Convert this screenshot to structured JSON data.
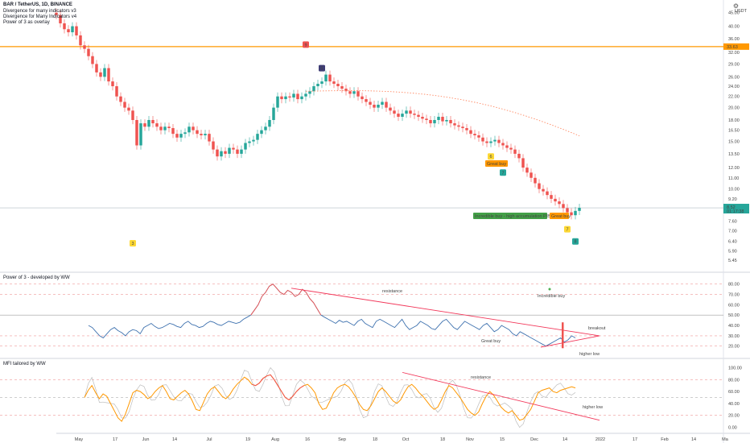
{
  "header": {
    "title": "BAR / TetherUS, 1D, BINANCE",
    "indicators": [
      "Divergence for many indicators v3",
      "Divergence for Many Indicators v4",
      "Power of 3 as overlay"
    ],
    "currency": "USDT"
  },
  "panels": {
    "power3_title": "Power of 3 - developed by WW",
    "mfi_title": "MFI tailored by WW"
  },
  "colors": {
    "up": "#26a69a",
    "down": "#ef5350",
    "orange": "#ff9800",
    "blue": "#2962ff",
    "navy": "#1565c0",
    "red_line": "#f2385a",
    "power_line": "#3f72af"
  },
  "icons": {
    "gear": "gear-icon"
  },
  "chart_data": [
    {
      "type": "candlestick",
      "name": "BAR / TetherUS, 1D, BINANCE",
      "x_ticks": [
        "May",
        "17",
        "Jun",
        "14",
        "Jul",
        "19",
        "Aug",
        "16",
        "Sep",
        "18",
        "Oct",
        "18",
        "Nov",
        "15",
        "Dec",
        "14",
        "2022",
        "17",
        "Feb",
        "14",
        "Ma"
      ],
      "y_ticks": [
        45.0,
        40.0,
        36.0,
        32.0,
        29.0,
        26.0,
        24.0,
        22.0,
        20.0,
        18.0,
        16.5,
        15.0,
        13.5,
        12.0,
        11.0,
        10.0,
        9.2,
        8.4,
        7.6,
        7.0,
        6.4,
        5.9,
        5.45
      ],
      "scale": "log",
      "ylim": [
        5.2,
        48
      ],
      "last_price": "8.52",
      "countdown": "01:17:38",
      "horizontal_level": {
        "value": "33.63"
      },
      "close": [
        44,
        41,
        39,
        38,
        40,
        37,
        34,
        33,
        31,
        29,
        27,
        26,
        28,
        25,
        24,
        22,
        21,
        20,
        19.5,
        18,
        14.5,
        17.5,
        17,
        18,
        17.5,
        17,
        16.5,
        17,
        16.8,
        16,
        15.5,
        16,
        16.2,
        17,
        16.5,
        16,
        15.8,
        16,
        15,
        14,
        13.2,
        13.8,
        13.5,
        14.2,
        14,
        13.5,
        14,
        14.8,
        15,
        15.2,
        16,
        16.5,
        17,
        18,
        20,
        22,
        21.5,
        22,
        21.8,
        22.5,
        21.5,
        22,
        22.5,
        23,
        24,
        24.5,
        25,
        26.5,
        25,
        24.5,
        24,
        23.5,
        23,
        22.5,
        23,
        22,
        21.5,
        21,
        20.5,
        20,
        20.5,
        21,
        20,
        19.5,
        19,
        18.5,
        19,
        19.5,
        19,
        18.8,
        18.5,
        18.2,
        18,
        17.5,
        18,
        18.5,
        17.8,
        18,
        17.5,
        17.2,
        17,
        16.8,
        16.5,
        16,
        15.8,
        15.5,
        15,
        14.8,
        15,
        15.2,
        14.8,
        14.5,
        14.2,
        14,
        13.5,
        13,
        12,
        11.5,
        11,
        10.5,
        10,
        9.8,
        9.5,
        9.2,
        9,
        8.8,
        8.5,
        8.2,
        8,
        8.3,
        8.52
      ],
      "annotations": [
        {
          "label": "Great buy"
        },
        {
          "label": "Incredible buy - high accumulation P/B"
        },
        {
          "label": "Great buy"
        }
      ],
      "markers": [
        {
          "text": "3"
        },
        {
          "text": "5"
        },
        {
          "text": "6"
        },
        {
          "text": "7"
        },
        {
          "text": "7"
        },
        {
          "text": "8"
        },
        {
          "text": "9"
        }
      ],
      "overlay": "Power of 3 as overlay"
    },
    {
      "type": "line",
      "name": "Power of 3 - developed by WW",
      "y_ticks": [
        80.0,
        70.0,
        60.0,
        50.0,
        40.0,
        30.0,
        20.0
      ],
      "ylim": [
        12,
        86
      ],
      "values": [
        40,
        38,
        34,
        30,
        28,
        32,
        36,
        38,
        35,
        33,
        30,
        34,
        36,
        35,
        32,
        38,
        40,
        42,
        39,
        37,
        38,
        40,
        42,
        41,
        39,
        38,
        42,
        44,
        41,
        40,
        38,
        39,
        42,
        44,
        43,
        41,
        40,
        42,
        44,
        43,
        42,
        43,
        46,
        48,
        50,
        55,
        60,
        68,
        72,
        78,
        80,
        76,
        72,
        70,
        74,
        72,
        68,
        70,
        75,
        72,
        66,
        62,
        56,
        50,
        48,
        46,
        44,
        42,
        45,
        43,
        44,
        42,
        40,
        44,
        46,
        42,
        40,
        38,
        44,
        46,
        44,
        42,
        40,
        38,
        42,
        46,
        40,
        36,
        38,
        40,
        44,
        42,
        40,
        37,
        36,
        40,
        44,
        46,
        42,
        38,
        36,
        40,
        44,
        42,
        40,
        38,
        36,
        40,
        42,
        38,
        34,
        36,
        40,
        38,
        36,
        32,
        30,
        34,
        32,
        30,
        28,
        26,
        24,
        22,
        20,
        22,
        24,
        26,
        28,
        24,
        26,
        30,
        28
      ],
      "annotations": [
        {
          "label": "resistance"
        },
        {
          "label": "Incredible buy"
        },
        {
          "label": "Great buy"
        },
        {
          "label": "breakout"
        },
        {
          "label": "higher low"
        }
      ],
      "reference_levels": [
        80,
        70,
        50,
        30,
        20
      ]
    },
    {
      "type": "line",
      "name": "MFI tailored by WW",
      "y_ticks": [
        100.0,
        80.0,
        60.0,
        40.0,
        20.0,
        0.0
      ],
      "ylim": [
        -6,
        106
      ],
      "values": [
        50,
        62,
        70,
        58,
        48,
        56,
        52,
        40,
        28,
        16,
        10,
        22,
        40,
        58,
        62,
        60,
        55,
        48,
        52,
        60,
        66,
        70,
        60,
        48,
        46,
        52,
        58,
        62,
        56,
        44,
        30,
        28,
        42,
        56,
        64,
        68,
        60,
        52,
        48,
        54,
        64,
        72,
        78,
        84,
        80,
        72,
        70,
        74,
        82,
        86,
        88,
        80,
        70,
        60,
        50,
        46,
        52,
        60,
        66,
        70,
        72,
        66,
        58,
        40,
        30,
        32,
        44,
        58,
        66,
        70,
        72,
        68,
        60,
        50,
        38,
        30,
        28,
        36,
        48,
        60,
        66,
        60,
        52,
        44,
        40,
        46,
        58,
        68,
        72,
        66,
        58,
        52,
        44,
        36,
        30,
        34,
        46,
        60,
        70,
        66,
        58,
        50,
        40,
        30,
        24,
        20,
        26,
        40,
        52,
        60,
        54,
        44,
        34,
        28,
        24,
        28,
        20,
        12,
        14,
        22,
        30,
        44,
        58,
        62,
        64,
        66,
        60,
        58,
        62,
        64,
        66,
        68,
        66
      ],
      "annotations": [
        {
          "label": "resistance"
        },
        {
          "label": "higher low"
        }
      ],
      "reference_levels": [
        80,
        50,
        20
      ]
    }
  ]
}
